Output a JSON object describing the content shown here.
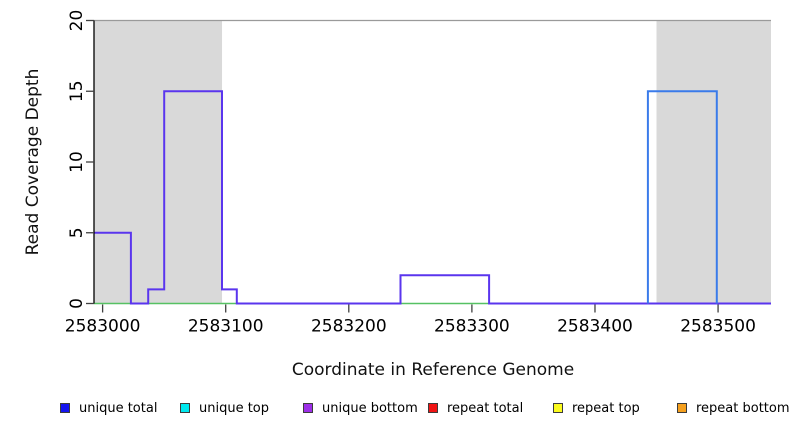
{
  "chart_data": {
    "type": "area",
    "subtype": "step-coverage",
    "title": "",
    "xlabel": "Coordinate in Reference Genome",
    "ylabel": "Read Coverage Depth",
    "xlim": [
      2582993,
      2583543
    ],
    "ylim": [
      0,
      20
    ],
    "xticks": [
      2583000,
      2583100,
      2583200,
      2583300,
      2583400,
      2583500
    ],
    "yticks": [
      0,
      5,
      10,
      15,
      20
    ],
    "grid": false,
    "background_color": "#ffffff",
    "shaded_region_color": "#d9d9d9",
    "top_border_color": "#9a9a9a",
    "axis_color": "#000000",
    "tick_color": "#404040",
    "shaded_regions": [
      {
        "x0": 2582993,
        "x1": 2583097
      },
      {
        "x0": 2583450,
        "x1": 2583543
      }
    ],
    "series": [
      {
        "name": "unique top",
        "color": "#56c163",
        "width": 1.6,
        "steps": [
          [
            2582993,
            0
          ]
        ],
        "x_end": 2583314
      },
      {
        "name": "repeat total",
        "color": "#e0506e",
        "width": 2,
        "steps": [
          [
            2583443,
            0
          ]
        ],
        "x_end": 2583499
      },
      {
        "name": "unique bottom",
        "color": "#5a35ee",
        "width": 2,
        "steps": [
          [
            2582993,
            5
          ],
          [
            2583023,
            0
          ],
          [
            2583037,
            1
          ],
          [
            2583050,
            15
          ],
          [
            2583097,
            1
          ],
          [
            2583109,
            0
          ],
          [
            2583242,
            2
          ],
          [
            2583314,
            0
          ]
        ],
        "x_end": 2583543
      },
      {
        "name": "unique total",
        "color": "#3a7bea",
        "width": 2,
        "steps": [
          [
            2583443,
            0
          ],
          [
            2583443,
            15
          ],
          [
            2583499,
            0
          ]
        ],
        "x_end": 2583499
      }
    ],
    "legend_position": "bottom",
    "legend": [
      {
        "label": "unique total",
        "color": "#1414f0"
      },
      {
        "label": "unique top",
        "color": "#00e8ee"
      },
      {
        "label": "unique bottom",
        "color": "#9d2fe8"
      },
      {
        "label": "repeat total",
        "color": "#f01414"
      },
      {
        "label": "repeat top",
        "color": "#fbfb1e"
      },
      {
        "label": "repeat bottom",
        "color": "#f5a01e"
      }
    ]
  }
}
